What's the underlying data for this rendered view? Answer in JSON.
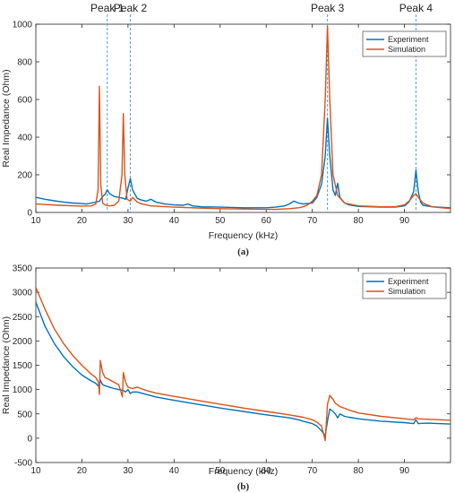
{
  "chart_data": [
    {
      "type": "line",
      "panel_label": "(a)",
      "xlabel": "Frequency (kHz)",
      "ylabel": "Real Impedance (Ohm)",
      "xlim": [
        10,
        100
      ],
      "ylim": [
        0,
        1000
      ],
      "xticks": [
        10,
        20,
        30,
        40,
        50,
        60,
        70,
        80,
        90
      ],
      "yticks": [
        0,
        200,
        400,
        600,
        800,
        1000
      ],
      "legend": "top-right",
      "grid": false,
      "series": [
        {
          "name": "Experiment",
          "color": "#0072BD",
          "points": [
            [
              10,
              80
            ],
            [
              12,
              70
            ],
            [
              14,
              62
            ],
            [
              16,
              55
            ],
            [
              18,
              50
            ],
            [
              20,
              47
            ],
            [
              21,
              45
            ],
            [
              22,
              50
            ],
            [
              23,
              55
            ],
            [
              23.8,
              60
            ],
            [
              24.5,
              85
            ],
            [
              25,
              95
            ],
            [
              25.5,
              120
            ],
            [
              26,
              100
            ],
            [
              27,
              85
            ],
            [
              28,
              80
            ],
            [
              29,
              75
            ],
            [
              29.5,
              70
            ],
            [
              30,
              130
            ],
            [
              30.5,
              180
            ],
            [
              31,
              120
            ],
            [
              32,
              75
            ],
            [
              33,
              65
            ],
            [
              34,
              60
            ],
            [
              35,
              70
            ],
            [
              36,
              55
            ],
            [
              38,
              45
            ],
            [
              40,
              40
            ],
            [
              42,
              38
            ],
            [
              43,
              45
            ],
            [
              44,
              35
            ],
            [
              46,
              30
            ],
            [
              50,
              28
            ],
            [
              55,
              25
            ],
            [
              60,
              25
            ],
            [
              62,
              28
            ],
            [
              64,
              35
            ],
            [
              65,
              45
            ],
            [
              66,
              60
            ],
            [
              67,
              50
            ],
            [
              68,
              45
            ],
            [
              70,
              50
            ],
            [
              71,
              80
            ],
            [
              72,
              150
            ],
            [
              72.8,
              300
            ],
            [
              73.3,
              500
            ],
            [
              73.8,
              300
            ],
            [
              74.5,
              120
            ],
            [
              75,
              90
            ],
            [
              75.5,
              155
            ],
            [
              76,
              80
            ],
            [
              77,
              50
            ],
            [
              78,
              40
            ],
            [
              80,
              32
            ],
            [
              85,
              28
            ],
            [
              88,
              28
            ],
            [
              90,
              35
            ],
            [
              91,
              55
            ],
            [
              92,
              110
            ],
            [
              92.5,
              225
            ],
            [
              93,
              110
            ],
            [
              93.5,
              55
            ],
            [
              94,
              38
            ],
            [
              96,
              30
            ],
            [
              100,
              25
            ]
          ]
        },
        {
          "name": "Simulation",
          "color": "#D95319",
          "points": [
            [
              10,
              45
            ],
            [
              15,
              38
            ],
            [
              20,
              34
            ],
            [
              22,
              35
            ],
            [
              23,
              45
            ],
            [
              23.5,
              120
            ],
            [
              23.8,
              670
            ],
            [
              24.1,
              150
            ],
            [
              24.5,
              50
            ],
            [
              25,
              40
            ],
            [
              26,
              35
            ],
            [
              27,
              38
            ],
            [
              28,
              60
            ],
            [
              28.7,
              200
            ],
            [
              29,
              525
            ],
            [
              29.3,
              200
            ],
            [
              29.8,
              70
            ],
            [
              30.5,
              60
            ],
            [
              31,
              80
            ],
            [
              32,
              55
            ],
            [
              33,
              45
            ],
            [
              35,
              35
            ],
            [
              40,
              28
            ],
            [
              45,
              24
            ],
            [
              50,
              20
            ],
            [
              55,
              18
            ],
            [
              60,
              16
            ],
            [
              62,
              16
            ],
            [
              65,
              20
            ],
            [
              67,
              25
            ],
            [
              68,
              30
            ],
            [
              69,
              40
            ],
            [
              70,
              60
            ],
            [
              71,
              90
            ],
            [
              72,
              200
            ],
            [
              72.8,
              600
            ],
            [
              73.3,
              990
            ],
            [
              73.8,
              600
            ],
            [
              74.5,
              200
            ],
            [
              75.5,
              90
            ],
            [
              77,
              50
            ],
            [
              80,
              35
            ],
            [
              85,
              30
            ],
            [
              88,
              30
            ],
            [
              90,
              40
            ],
            [
              91,
              60
            ],
            [
              92,
              90
            ],
            [
              92.5,
              100
            ],
            [
              93,
              80
            ],
            [
              94,
              50
            ],
            [
              96,
              30
            ],
            [
              100,
              20
            ]
          ]
        }
      ],
      "annotations": [
        {
          "text": "Peak 1",
          "x": 25.5
        },
        {
          "text": "Peak 2",
          "x": 30.5
        },
        {
          "text": "Peak 3",
          "x": 73.3
        },
        {
          "text": "Peak 4",
          "x": 92.5
        }
      ]
    },
    {
      "type": "line",
      "panel_label": "(b)",
      "xlabel": "Frequency (kHz)",
      "ylabel": "Real Impedance (Ohm)",
      "xlim": [
        10,
        100
      ],
      "ylim": [
        -500,
        3500
      ],
      "xticks": [
        10,
        20,
        30,
        40,
        50,
        60,
        70,
        80,
        90
      ],
      "yticks": [
        -500,
        0,
        500,
        1000,
        1500,
        2000,
        2500,
        3000,
        3500
      ],
      "legend": "top-right",
      "grid": false,
      "series": [
        {
          "name": "Experiment",
          "color": "#0072BD",
          "points": [
            [
              10,
              2800
            ],
            [
              12,
              2300
            ],
            [
              14,
              1950
            ],
            [
              16,
              1680
            ],
            [
              18,
              1470
            ],
            [
              20,
              1300
            ],
            [
              22,
              1180
            ],
            [
              23,
              1130
            ],
            [
              23.8,
              1050
            ],
            [
              24,
              1200
            ],
            [
              24.5,
              1100
            ],
            [
              25,
              1080
            ],
            [
              26,
              1050
            ],
            [
              27,
              1020
            ],
            [
              28,
              1000
            ],
            [
              29,
              980
            ],
            [
              29.5,
              950
            ],
            [
              30,
              1000
            ],
            [
              30.5,
              920
            ],
            [
              31,
              950
            ],
            [
              32,
              950
            ],
            [
              34,
              900
            ],
            [
              36,
              850
            ],
            [
              40,
              780
            ],
            [
              45,
              700
            ],
            [
              50,
              620
            ],
            [
              55,
              550
            ],
            [
              60,
              480
            ],
            [
              65,
              420
            ],
            [
              67,
              380
            ],
            [
              68,
              350
            ],
            [
              70,
              300
            ],
            [
              71,
              250
            ],
            [
              72,
              150
            ],
            [
              72.8,
              50
            ],
            [
              73.3,
              350
            ],
            [
              73.8,
              600
            ],
            [
              74.5,
              550
            ],
            [
              75,
              500
            ],
            [
              75.5,
              420
            ],
            [
              76,
              500
            ],
            [
              77,
              450
            ],
            [
              78,
              430
            ],
            [
              80,
              400
            ],
            [
              85,
              350
            ],
            [
              90,
              320
            ],
            [
              92,
              300
            ],
            [
              92.5,
              380
            ],
            [
              93,
              300
            ],
            [
              95,
              310
            ],
            [
              100,
              290
            ]
          ]
        },
        {
          "name": "Simulation",
          "color": "#D95319",
          "points": [
            [
              10,
              3100
            ],
            [
              12,
              2650
            ],
            [
              14,
              2250
            ],
            [
              16,
              1950
            ],
            [
              18,
              1700
            ],
            [
              20,
              1500
            ],
            [
              22,
              1320
            ],
            [
              23,
              1250
            ],
            [
              23.6,
              1150
            ],
            [
              23.8,
              900
            ],
            [
              24,
              1600
            ],
            [
              24.5,
              1350
            ],
            [
              25,
              1250
            ],
            [
              26,
              1200
            ],
            [
              27,
              1150
            ],
            [
              28,
              1100
            ],
            [
              28.8,
              850
            ],
            [
              29,
              1350
            ],
            [
              29.5,
              1150
            ],
            [
              30,
              1050
            ],
            [
              31,
              1020
            ],
            [
              32,
              1050
            ],
            [
              34,
              980
            ],
            [
              36,
              930
            ],
            [
              40,
              860
            ],
            [
              45,
              780
            ],
            [
              50,
              700
            ],
            [
              55,
              620
            ],
            [
              60,
              550
            ],
            [
              65,
              480
            ],
            [
              68,
              430
            ],
            [
              70,
              380
            ],
            [
              71,
              330
            ],
            [
              72,
              250
            ],
            [
              72.8,
              -50
            ],
            [
              73.3,
              700
            ],
            [
              73.8,
              880
            ],
            [
              74.5,
              800
            ],
            [
              75,
              720
            ],
            [
              76,
              650
            ],
            [
              78,
              580
            ],
            [
              80,
              520
            ],
            [
              85,
              450
            ],
            [
              90,
              400
            ],
            [
              92,
              380
            ],
            [
              92.5,
              420
            ],
            [
              93,
              400
            ],
            [
              95,
              390
            ],
            [
              100,
              370
            ]
          ]
        }
      ]
    }
  ]
}
